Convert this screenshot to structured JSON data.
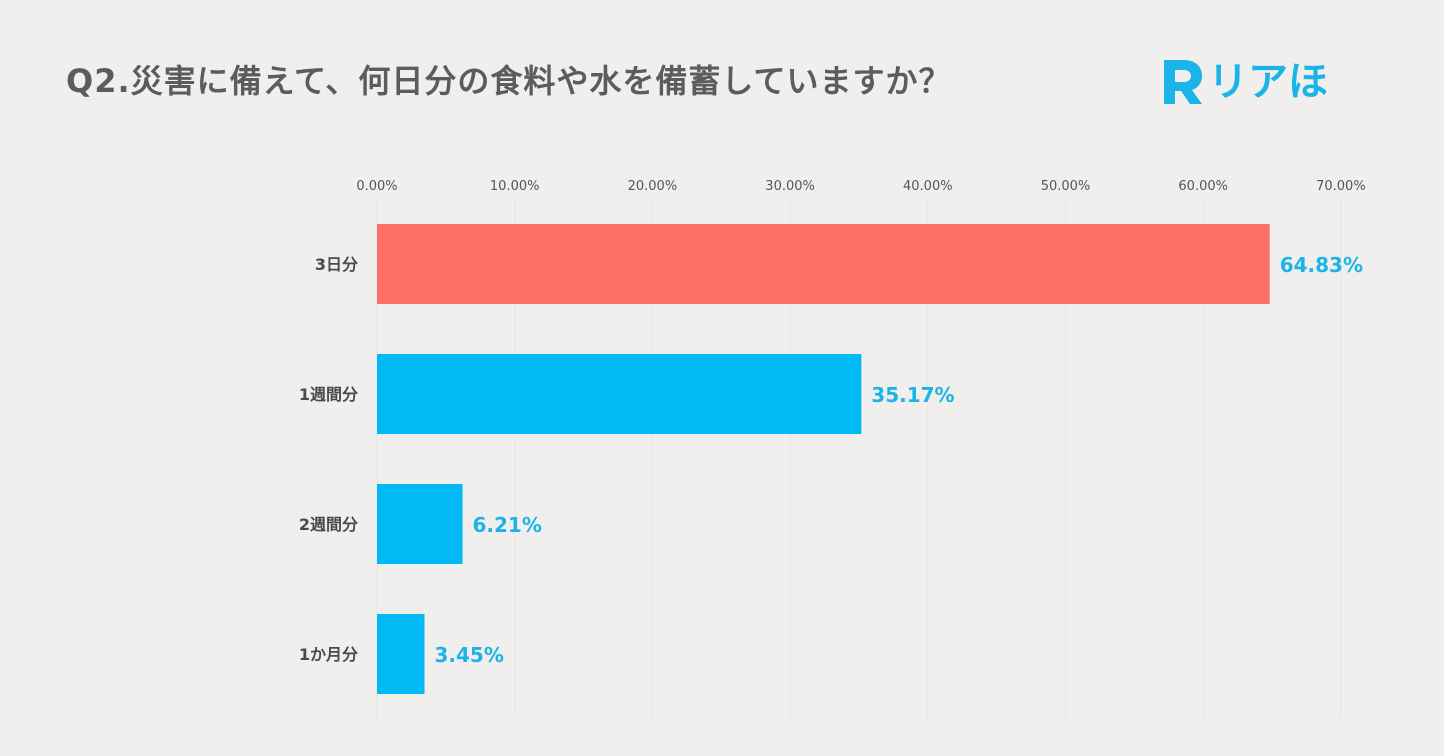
{
  "title": "Q2.災害に備えて、何日分の食料や水を備蓄していますか？",
  "logo": {
    "text": "リアほ",
    "color": "#1ab4e8"
  },
  "colors": {
    "highlight": "#ff7068",
    "default": "#00b9f5",
    "label": "#1ab4e8",
    "grid": "#e6e5e4",
    "tick": "#555555"
  },
  "chart_data": {
    "type": "bar",
    "orientation": "horizontal",
    "title": "Q2.災害に備えて、何日分の食料や水を備蓄していますか？",
    "categories": [
      "3日分",
      "1週間分",
      "2週間分",
      "1か月分"
    ],
    "values": [
      64.83,
      35.17,
      6.21,
      3.45
    ],
    "value_labels": [
      "64.83%",
      "35.17%",
      "6.21%",
      "3.45%"
    ],
    "highlight_index": 0,
    "xlim": [
      0,
      70
    ],
    "xticks": [
      "0.00%",
      "10.00%",
      "20.00%",
      "30.00%",
      "40.00%",
      "50.00%",
      "60.00%",
      "70.00%"
    ],
    "xaxis_position": "top",
    "grid": true,
    "legend": "none",
    "xlabel": "",
    "ylabel": ""
  }
}
